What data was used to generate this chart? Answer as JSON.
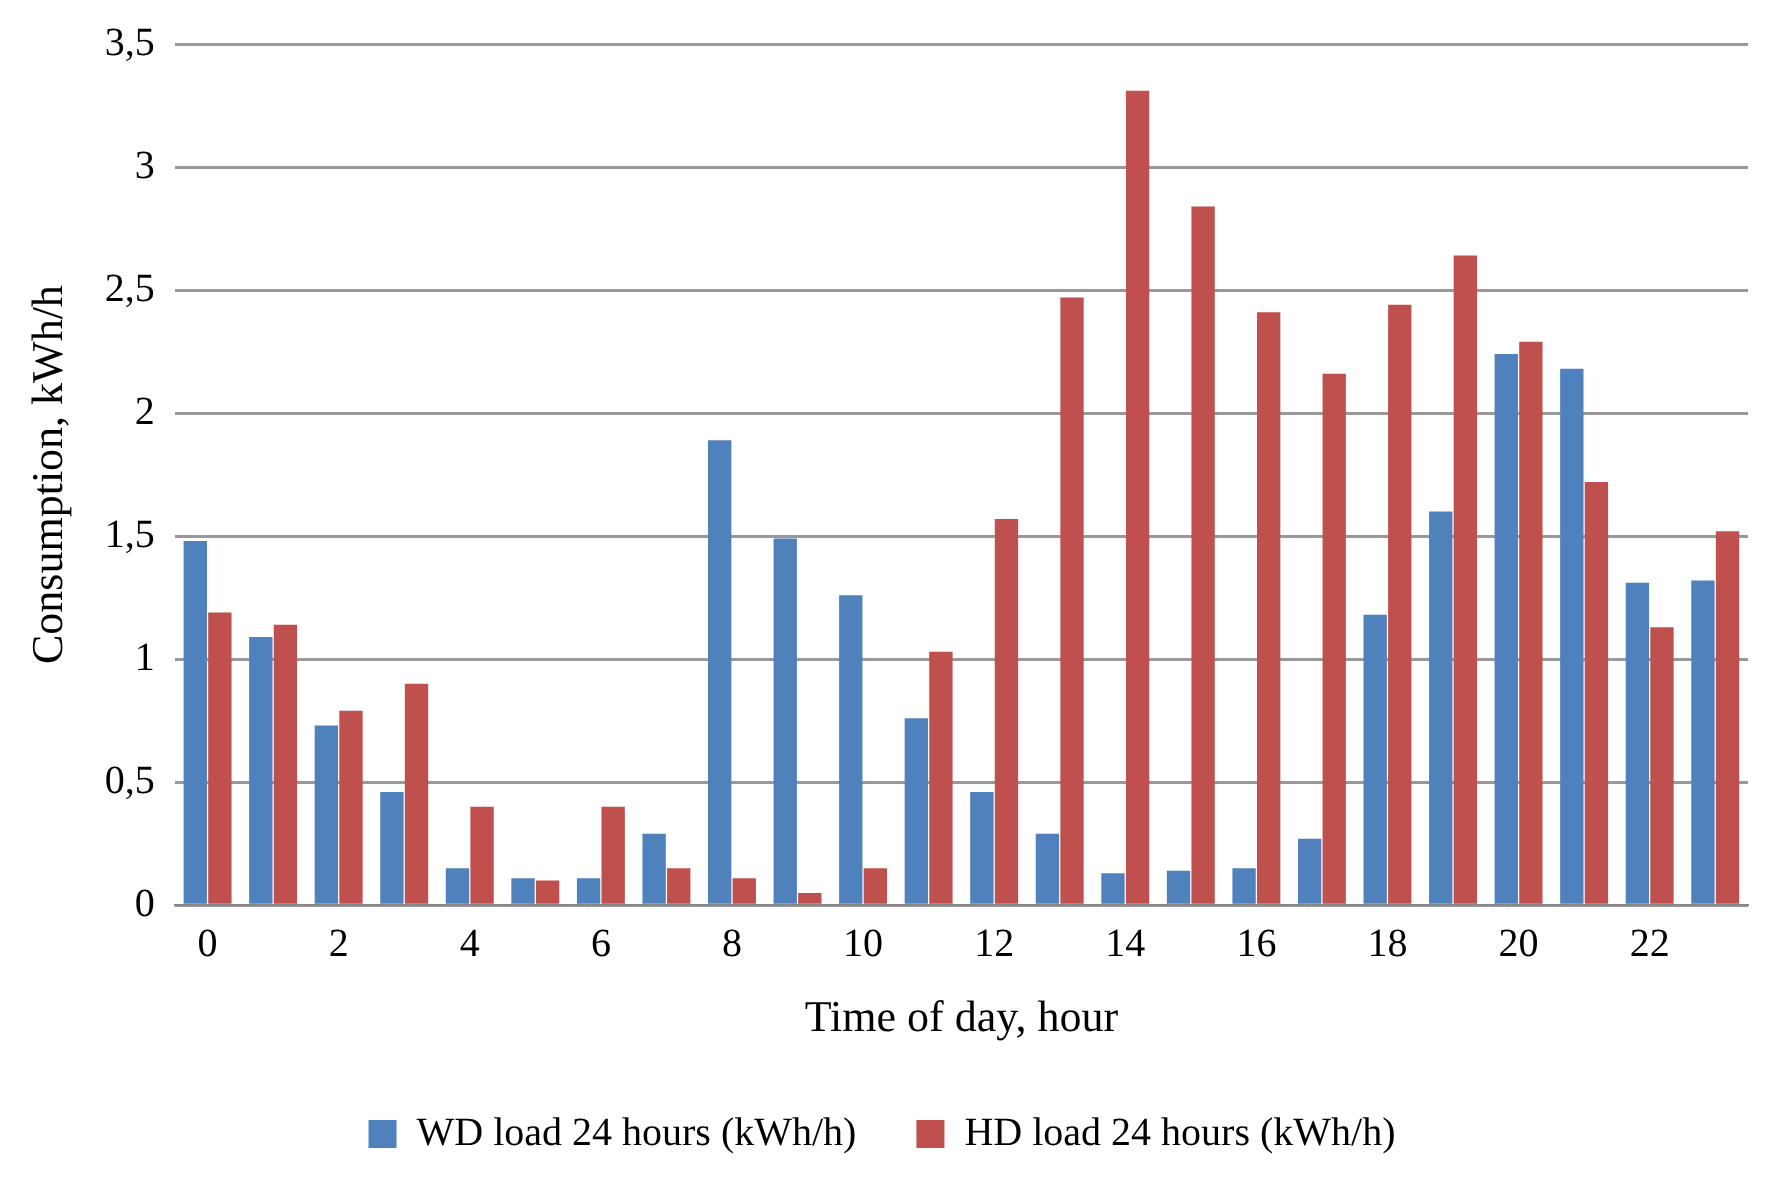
{
  "chart_data": {
    "type": "bar",
    "xlabel": "Time of day, hour",
    "ylabel": "Consumption, kWh/h",
    "categories": [
      "0",
      null,
      "2",
      null,
      "4",
      null,
      "6",
      null,
      "8",
      null,
      "10",
      null,
      "12",
      null,
      "14",
      null,
      "16",
      null,
      "18",
      null,
      "20",
      null,
      "22",
      null
    ],
    "series": [
      {
        "name": "WD load 24 hours (kWh/h)",
        "color": "#4f81bd",
        "values": [
          1.48,
          1.09,
          0.73,
          0.46,
          0.15,
          0.11,
          0.11,
          0.29,
          1.89,
          1.49,
          1.26,
          0.76,
          0.46,
          0.29,
          0.13,
          0.14,
          0.15,
          0.27,
          1.18,
          1.6,
          2.24,
          2.18,
          1.31,
          1.32
        ]
      },
      {
        "name": "HD load 24 hours (kWh/h)",
        "color": "#c0504d",
        "values": [
          1.19,
          1.14,
          0.79,
          0.9,
          0.4,
          0.1,
          0.4,
          0.15,
          0.11,
          0.05,
          0.15,
          1.03,
          1.57,
          2.47,
          3.31,
          2.84,
          2.41,
          2.16,
          2.44,
          2.64,
          2.29,
          1.72,
          1.13,
          1.52
        ]
      }
    ],
    "ylim": [
      0,
      3.5
    ],
    "yticks": [
      0,
      {
        "value": 0.5,
        "label": "0,5"
      },
      1,
      {
        "value": 1.5,
        "label": "1,5"
      },
      2,
      {
        "value": 2.5,
        "label": "2,5"
      },
      3,
      {
        "value": 3.5,
        "label": "3,5"
      }
    ],
    "grid": "y",
    "legend": "bottom"
  }
}
